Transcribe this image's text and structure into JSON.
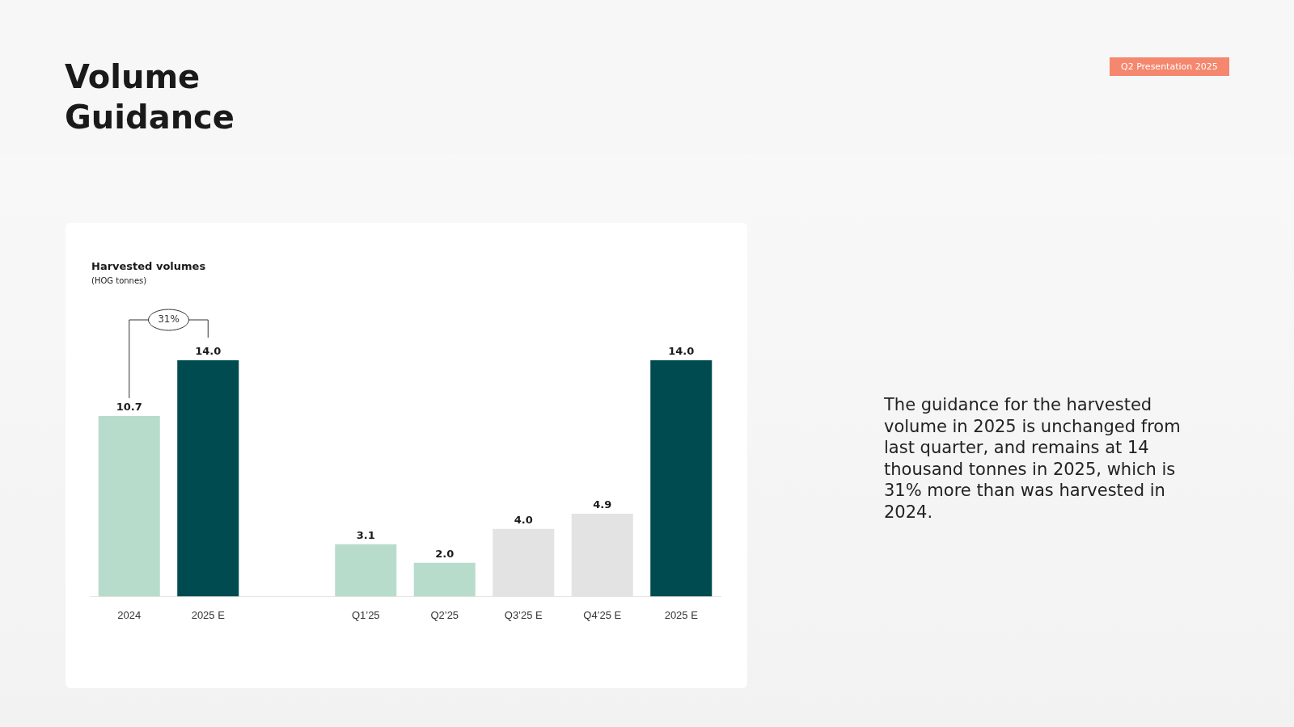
{
  "chart_data": {
    "type": "bar",
    "title": "Volume Guidance",
    "subtitle": "Harvested volumes",
    "categories": [
      "2024",
      "2025 E",
      null,
      "Q1’25",
      "Q2’25",
      "Q3’25 E",
      "Q4’25 E",
      "2025 E"
    ],
    "values": [
      10.7,
      14.0,
      null,
      3.1,
      2.0,
      4.0,
      4.9,
      14.0
    ],
    "colors": [
      "#b8dccb",
      "#004b50",
      "#ffffff",
      "#b8dccb",
      "#b8dccb",
      "#e3e3e3",
      "#e3e3e3",
      "#004b50"
    ],
    "value_labels": [
      "10.7",
      "14.0",
      null,
      "3.1",
      "2.0",
      "4.0",
      "4.9",
      "14.0"
    ],
    "legend": false,
    "grid": false,
    "annotations": [
      "31%",
      "Q2 Presentation 2025",
      "The guidance for the harvested volume in 2025 is unchanged from last quarter, and remains at 14 thousand tonnes in 2025, which is 31% more than was harvested in 2024.",
      "(HOG tonnes)"
    ]
  }
}
